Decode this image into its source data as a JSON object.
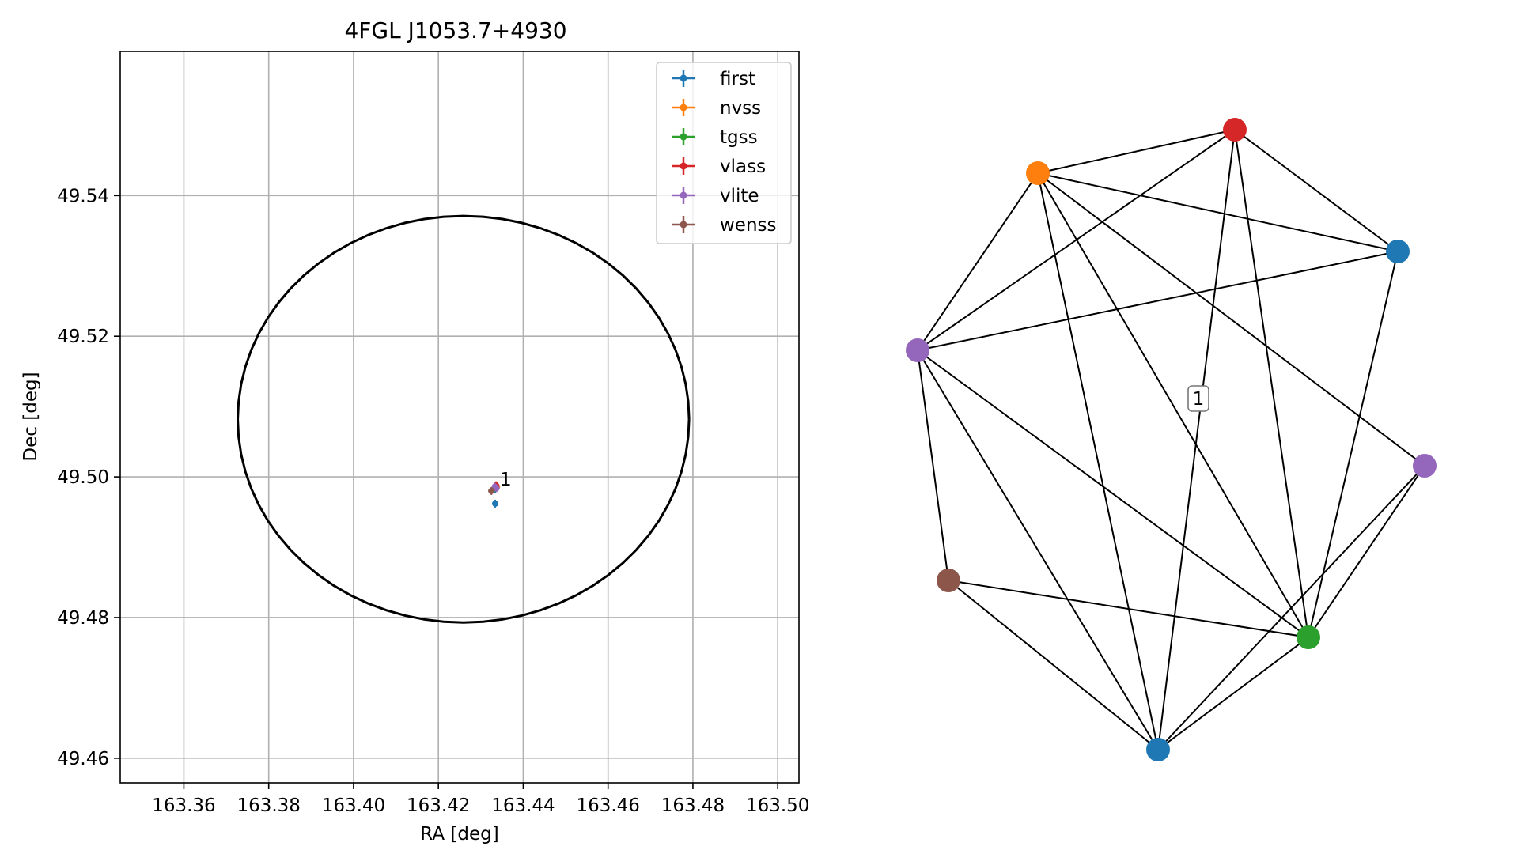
{
  "chart_data": [
    {
      "type": "scatter",
      "title": "4FGL J1053.7+4930",
      "xlabel": "RA [deg]",
      "ylabel": "Dec [deg]",
      "xlim": [
        163.345,
        163.505
      ],
      "ylim": [
        49.4565,
        49.5605
      ],
      "xticks": [
        163.36,
        163.38,
        163.4,
        163.42,
        163.44,
        163.46,
        163.48,
        163.5
      ],
      "xtick_labels": [
        "163.36",
        "163.38",
        "163.40",
        "163.42",
        "163.44",
        "163.46",
        "163.48",
        "163.50"
      ],
      "yticks": [
        49.46,
        49.48,
        49.5,
        49.52,
        49.54
      ],
      "ytick_labels": [
        "49.46",
        "49.48",
        "49.50",
        "49.52",
        "49.54"
      ],
      "grid": true,
      "legend_position": "top-right",
      "error_ellipse": {
        "center_ra": 163.4259,
        "center_dec": 49.5082,
        "semi_major_ra": 0.0532,
        "semi_minor_dec": 0.0289
      },
      "series": [
        {
          "name": "first",
          "color": "#1f77b4",
          "points": [
            {
              "ra": 163.4334,
              "dec": 49.4962
            },
            {
              "ra": 163.4334,
              "dec": 49.4983
            }
          ]
        },
        {
          "name": "nvss",
          "color": "#ff7f0e",
          "points": [
            {
              "ra": 163.4338,
              "dec": 49.4986
            }
          ]
        },
        {
          "name": "tgss",
          "color": "#2ca02c",
          "points": [
            {
              "ra": 163.4334,
              "dec": 49.4985
            }
          ]
        },
        {
          "name": "vlass",
          "color": "#d62728",
          "points": [
            {
              "ra": 163.4336,
              "dec": 49.4988
            }
          ]
        },
        {
          "name": "vlite",
          "color": "#9467bd",
          "points": [
            {
              "ra": 163.4333,
              "dec": 49.4986
            },
            {
              "ra": 163.4337,
              "dec": 49.4984
            }
          ]
        },
        {
          "name": "wenss",
          "color": "#8c564b",
          "points": [
            {
              "ra": 163.4325,
              "dec": 49.498
            }
          ]
        }
      ],
      "annotations": [
        {
          "text": "1",
          "ra": 163.4345,
          "dec": 49.4988
        }
      ]
    },
    {
      "type": "network",
      "component_label": "1",
      "nodes": [
        {
          "id": "nvss",
          "color": "#ff7f0e"
        },
        {
          "id": "vlass",
          "color": "#d62728"
        },
        {
          "id": "first_a",
          "color": "#1f77b4"
        },
        {
          "id": "vlite_a",
          "color": "#9467bd"
        },
        {
          "id": "vlite_b",
          "color": "#9467bd"
        },
        {
          "id": "wenss",
          "color": "#8c564b"
        },
        {
          "id": "tgss",
          "color": "#2ca02c"
        },
        {
          "id": "first_b",
          "color": "#1f77b4"
        }
      ],
      "edges": [
        [
          "nvss",
          "vlass"
        ],
        [
          "nvss",
          "first_a"
        ],
        [
          "nvss",
          "vlite_a"
        ],
        [
          "nvss",
          "tgss"
        ],
        [
          "nvss",
          "first_b"
        ],
        [
          "nvss",
          "vlite_b"
        ],
        [
          "vlass",
          "first_a"
        ],
        [
          "vlass",
          "vlite_a"
        ],
        [
          "vlass",
          "tgss"
        ],
        [
          "vlass",
          "first_b"
        ],
        [
          "first_a",
          "vlite_a"
        ],
        [
          "first_a",
          "tgss"
        ],
        [
          "vlite_a",
          "wenss"
        ],
        [
          "vlite_a",
          "tgss"
        ],
        [
          "vlite_a",
          "first_b"
        ],
        [
          "vlite_b",
          "tgss"
        ],
        [
          "vlite_b",
          "first_b"
        ],
        [
          "wenss",
          "tgss"
        ],
        [
          "wenss",
          "first_b"
        ],
        [
          "tgss",
          "first_b"
        ]
      ]
    }
  ]
}
